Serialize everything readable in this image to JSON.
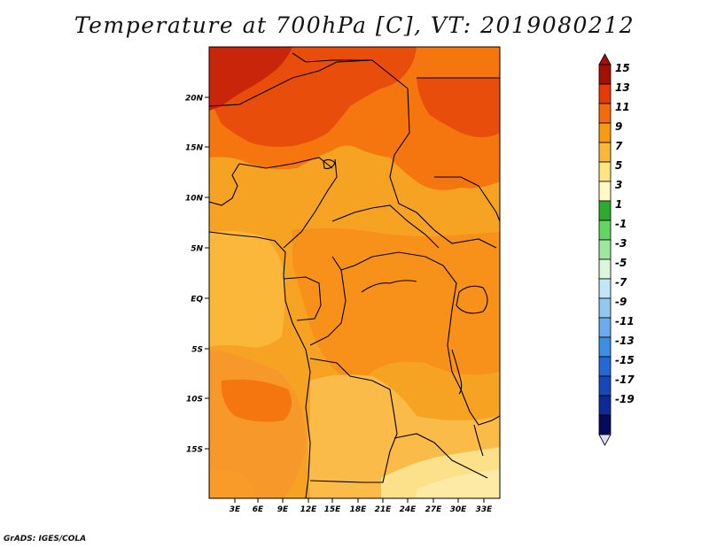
{
  "title": "Temperature at 700hPa [C], VT: 2019080212",
  "credit": "GrADS: IGES/COLA",
  "lat_labels": [
    "20N",
    "15N",
    "10N",
    "5N",
    "EQ",
    "5S",
    "10S",
    "15S"
  ],
  "lon_labels": [
    "3E",
    "6E",
    "9E",
    "12E",
    "15E",
    "18E",
    "21E",
    "24E",
    "27E",
    "30E",
    "33E"
  ],
  "colorbar": [
    {
      "label": "15",
      "color": "#a50f04"
    },
    {
      "label": "13",
      "color": "#e63a0a"
    },
    {
      "label": "11",
      "color": "#f56a0c"
    },
    {
      "label": "9",
      "color": "#f89b10"
    },
    {
      "label": "7",
      "color": "#fbb73a"
    },
    {
      "label": "5",
      "color": "#fde584"
    },
    {
      "label": "3",
      "color": "#fffac4"
    },
    {
      "label": "1",
      "color": "#2eab2e"
    },
    {
      "label": "-1",
      "color": "#64d464"
    },
    {
      "label": "-3",
      "color": "#9fe69f"
    },
    {
      "label": "-5",
      "color": "#dcf6dc"
    },
    {
      "label": "-7",
      "color": "#c3e6f7"
    },
    {
      "label": "-9",
      "color": "#92c8f2"
    },
    {
      "label": "-11",
      "color": "#6aacec"
    },
    {
      "label": "-13",
      "color": "#3e8ee4"
    },
    {
      "label": "-15",
      "color": "#2468d4"
    },
    {
      "label": "-17",
      "color": "#1848b8"
    },
    {
      "label": "-19",
      "color": "#0f2a96"
    },
    {
      "label": "",
      "color": "#060a5a"
    },
    {
      "label": "",
      "color": "#dcdcf6"
    }
  ],
  "colors": {
    "max_top": "#a50f04",
    "t13": "#e63a0a",
    "t11": "#f56a0c",
    "t9": "#f89b10",
    "t7": "#fbb73a",
    "t5": "#fde584",
    "border": "#000000"
  }
}
